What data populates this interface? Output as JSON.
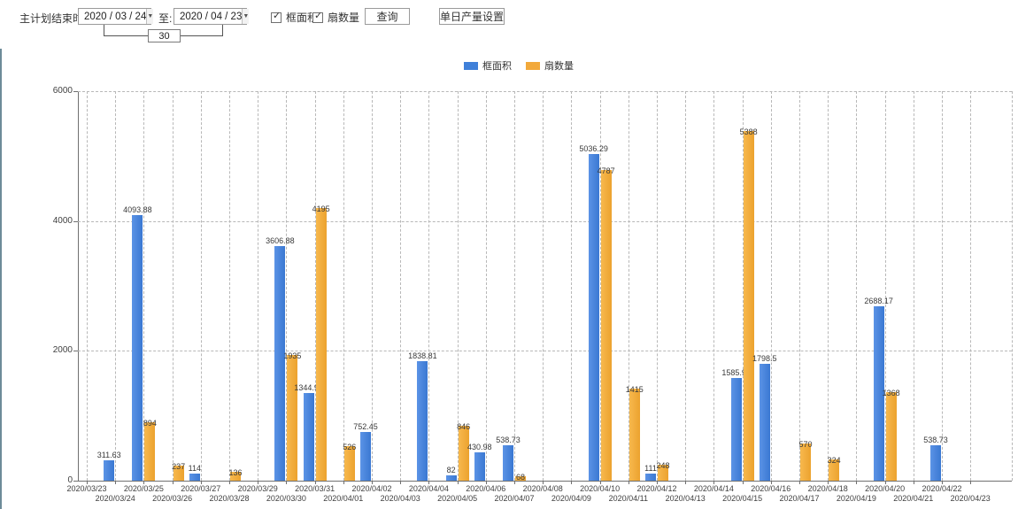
{
  "window": {
    "left_edge_color": "#6d8b99"
  },
  "toolbar": {
    "label_main": "主计划结束时间:",
    "label_to": "至:",
    "date_from": "2020 / 03 / 24",
    "date_to": "2020 / 04 / 23",
    "interval_days": "30",
    "checkbox_frame_area": {
      "label": "框面积",
      "checked": true
    },
    "checkbox_sash_count": {
      "label": "扇数量",
      "checked": true
    },
    "query_button": "查询",
    "daily_output_button": "单日产量设置",
    "dropdown_icon": "▼",
    "check_glyph": "✓"
  },
  "legend": {
    "items": [
      {
        "label": "框面积",
        "color": "#3f80d9"
      },
      {
        "label": "扇数量",
        "color": "#f2a93b"
      }
    ]
  },
  "chart_data": {
    "type": "bar",
    "title": "",
    "xlabel": "",
    "ylabel": "",
    "ylim": [
      0,
      6000
    ],
    "yticks": [
      0,
      2000,
      4000,
      6000
    ],
    "grid": true,
    "grid_style": "dashed",
    "legend_position": "top-center",
    "categories": [
      "2020/03/23",
      "2020/03/24",
      "2020/03/25",
      "2020/03/26",
      "2020/03/27",
      "2020/03/28",
      "2020/03/29",
      "2020/03/30",
      "2020/03/31",
      "2020/04/01",
      "2020/04/02",
      "2020/04/03",
      "2020/04/04",
      "2020/04/05",
      "2020/04/06",
      "2020/04/07",
      "2020/04/08",
      "2020/04/09",
      "2020/04/10",
      "2020/04/11",
      "2020/04/12",
      "2020/04/13",
      "2020/04/14",
      "2020/04/15",
      "2020/04/16",
      "2020/04/17",
      "2020/04/18",
      "2020/04/19",
      "2020/04/20",
      "2020/04/21",
      "2020/04/22",
      "2020/04/23"
    ],
    "series": [
      {
        "name": "框面积",
        "color": "#3f80d9",
        "values": [
          null,
          311.63,
          4093.88,
          null,
          114,
          null,
          null,
          3606.88,
          1344.95,
          null,
          752.45,
          null,
          1838.81,
          82,
          430.98,
          538.73,
          null,
          null,
          5036.29,
          null,
          111,
          null,
          null,
          1585.96,
          1798.5,
          null,
          null,
          null,
          2688.17,
          null,
          538.73,
          null
        ]
      },
      {
        "name": "扇数量",
        "color": "#f2a93b",
        "values": [
          null,
          null,
          894,
          237,
          null,
          136,
          null,
          1935,
          4195,
          526,
          null,
          null,
          null,
          846,
          null,
          68,
          null,
          null,
          4787,
          1415,
          248,
          null,
          null,
          5388,
          null,
          570,
          324,
          null,
          1368,
          null,
          null,
          null
        ]
      }
    ]
  }
}
